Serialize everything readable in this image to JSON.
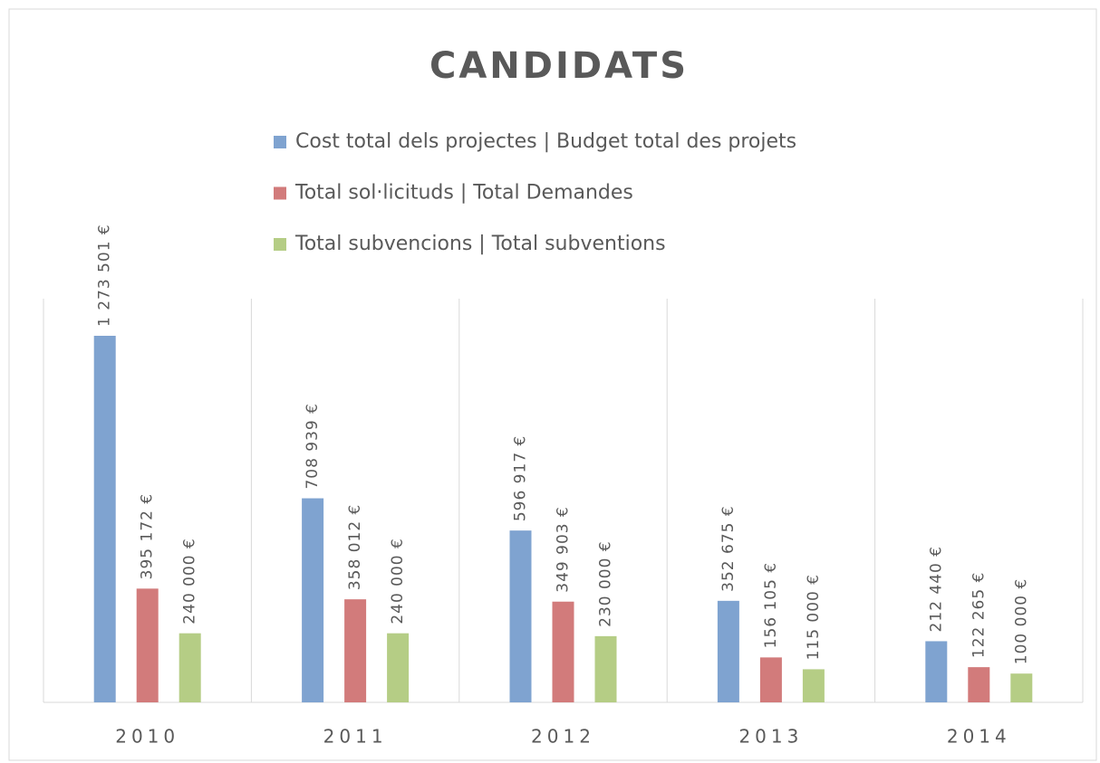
{
  "chart_data": {
    "type": "bar",
    "title": "CANDIDATS",
    "categories": [
      "2010",
      "2011",
      "2012",
      "2013",
      "2014"
    ],
    "series": [
      {
        "name": "Cost total dels projectes | Budget total des projets",
        "color": "#7fa3d0",
        "values": [
          1273501,
          708939,
          596917,
          352675,
          212440
        ],
        "value_labels": [
          "1 273 501 €",
          "708 939 €",
          "596 917 €",
          "352 675 €",
          "212 440 €"
        ]
      },
      {
        "name": "Total sol·licituds | Total Demandes",
        "color": "#d27b7b",
        "values": [
          395172,
          358012,
          349903,
          156105,
          122265
        ],
        "value_labels": [
          "395 172 €",
          "358 012 €",
          "349 903 €",
          "156 105 €",
          "122 265 €"
        ]
      },
      {
        "name": "Total subvencions | Total subventions",
        "color": "#b5cd85",
        "values": [
          240000,
          240000,
          230000,
          115000,
          100000
        ],
        "value_labels": [
          "240 000 €",
          "240 000 €",
          "230 000 €",
          "115 000 €",
          "100 000 €"
        ]
      }
    ]
  }
}
